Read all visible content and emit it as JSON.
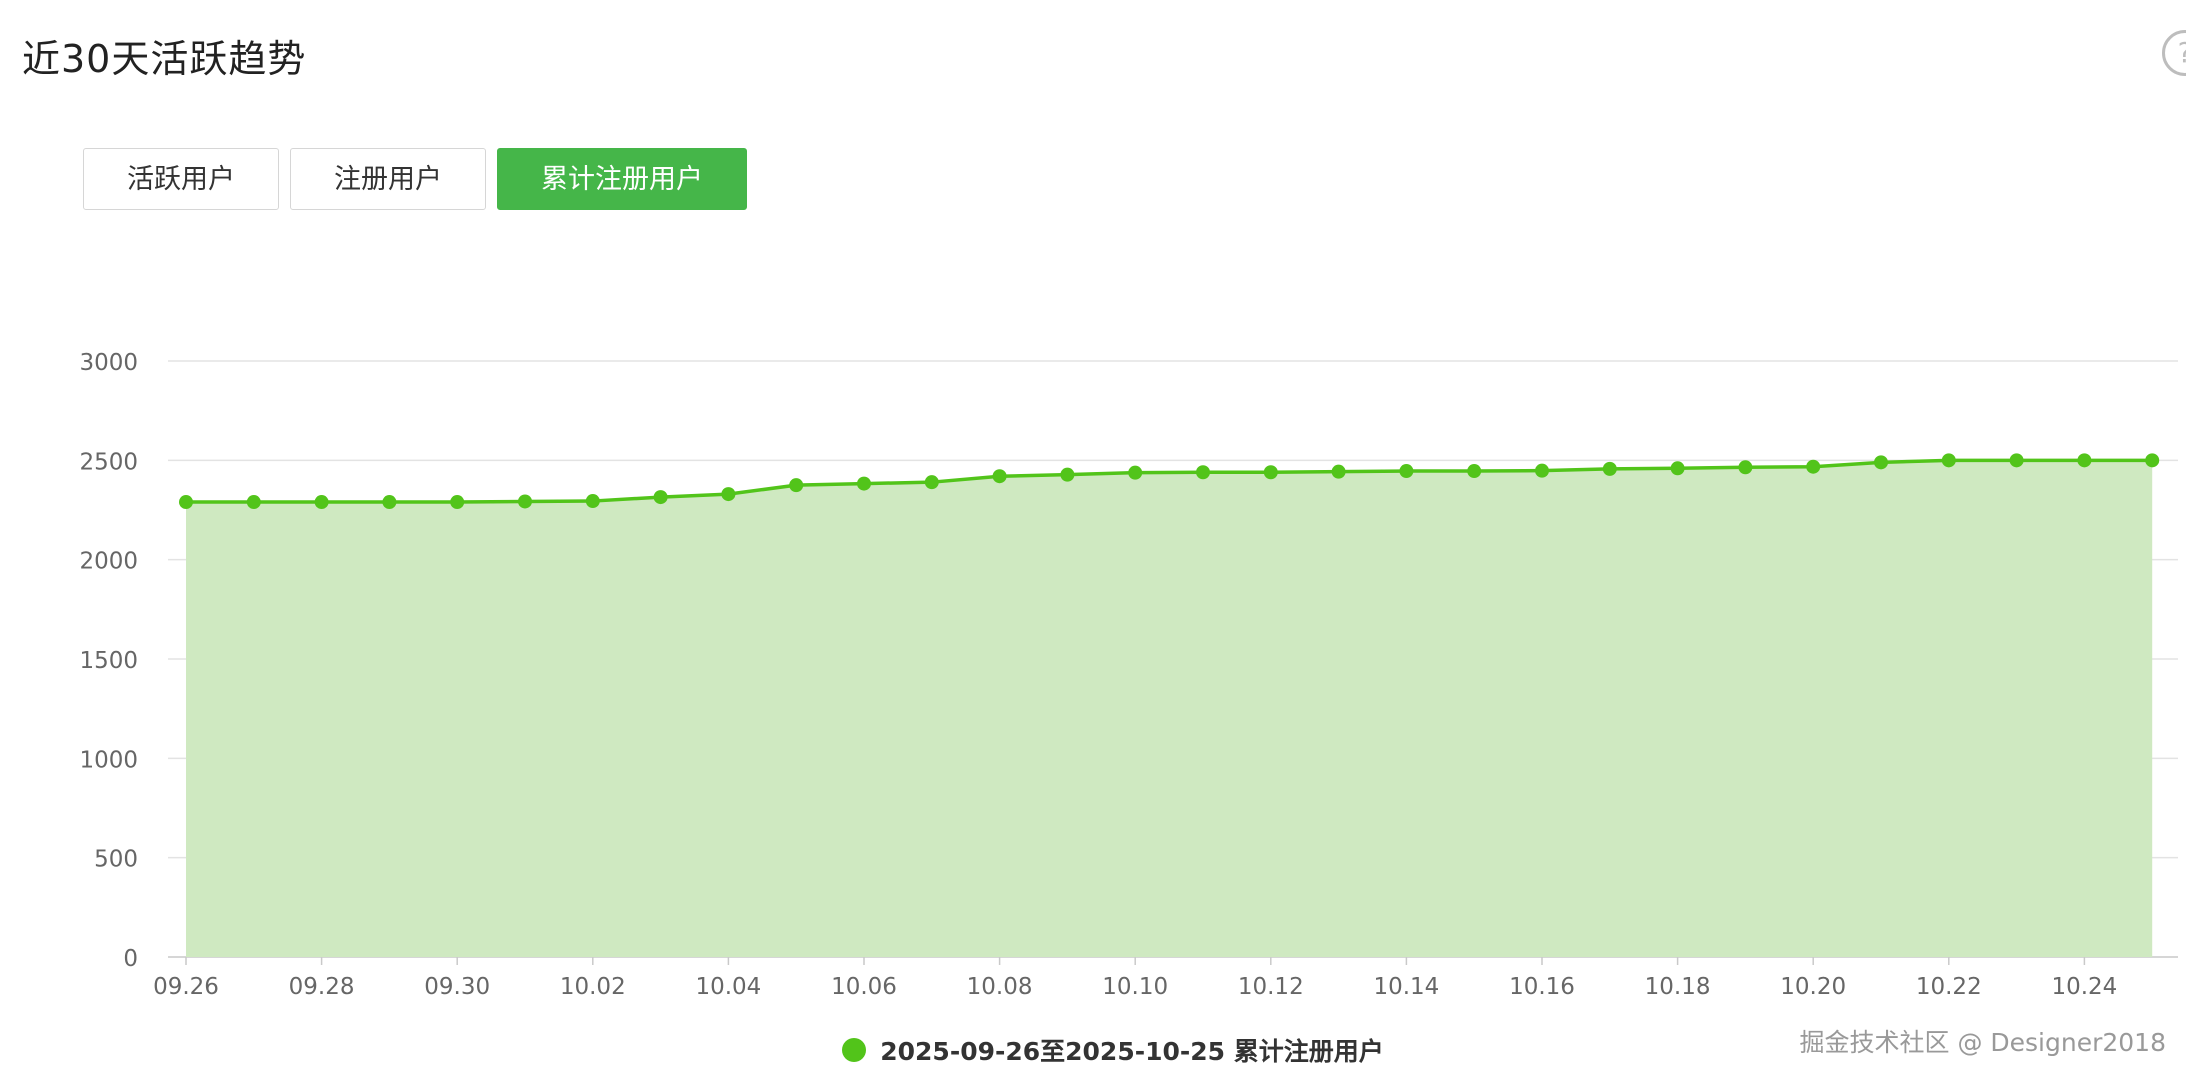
{
  "header": {
    "title": "近30天活跃趋势",
    "help_icon": "?"
  },
  "tabs": [
    {
      "label": "活跃用户",
      "active": false
    },
    {
      "label": "注册用户",
      "active": false
    },
    {
      "label": "累计注册用户",
      "active": true
    }
  ],
  "colors": {
    "accent": "#45b649",
    "line": "#52c41a",
    "fill": "#cfe9c1",
    "grid": "#e3e3e3",
    "axis_text": "#666666"
  },
  "chart_data": {
    "type": "area",
    "x": [
      "09.26",
      "09.27",
      "09.28",
      "09.29",
      "09.30",
      "10.01",
      "10.02",
      "10.03",
      "10.04",
      "10.05",
      "10.06",
      "10.07",
      "10.08",
      "10.09",
      "10.10",
      "10.11",
      "10.12",
      "10.13",
      "10.14",
      "10.15",
      "10.16",
      "10.17",
      "10.18",
      "10.19",
      "10.20",
      "10.21",
      "10.22",
      "10.23",
      "10.24",
      "10.25"
    ],
    "x_tick_labels": [
      "09.26",
      "09.28",
      "09.30",
      "10.02",
      "10.04",
      "10.06",
      "10.08",
      "10.10",
      "10.12",
      "10.14",
      "10.16",
      "10.18",
      "10.20",
      "10.22",
      "10.24"
    ],
    "series": [
      {
        "name": "2025-09-26至2025-10-25 累计注册用户",
        "values": [
          2290,
          2290,
          2290,
          2290,
          2290,
          2293,
          2295,
          2315,
          2330,
          2375,
          2383,
          2390,
          2420,
          2428,
          2438,
          2440,
          2440,
          2443,
          2446,
          2446,
          2448,
          2457,
          2460,
          2465,
          2468,
          2490,
          2500,
          2500,
          2500,
          2500
        ]
      }
    ],
    "ylim": [
      0,
      3000
    ],
    "y_ticks": [
      0,
      500,
      1000,
      1500,
      2000,
      2500,
      3000
    ],
    "grid": true,
    "legend_position": "bottom"
  },
  "watermark": "掘金技术社区 @ Designer2018"
}
